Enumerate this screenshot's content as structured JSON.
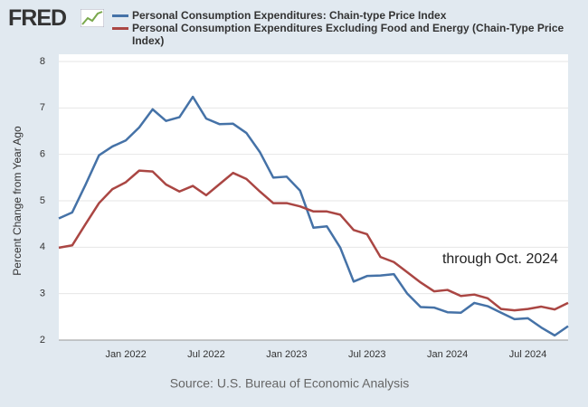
{
  "logo": "FRED",
  "chart_data": {
    "type": "line",
    "source": "Source: U.S. Bureau of Economic Analysis",
    "annotation": "through Oct. 2024",
    "ylabel": "Percent Change from Year Ago",
    "ylim": [
      2,
      8
    ],
    "yticks": [
      2,
      3,
      4,
      5,
      6,
      7,
      8
    ],
    "grid": true,
    "categories": [
      null,
      null,
      null,
      null,
      null,
      "Jan 2022",
      null,
      null,
      null,
      null,
      null,
      "Jul 2022",
      null,
      null,
      null,
      null,
      null,
      "Jan 2023",
      null,
      null,
      null,
      null,
      null,
      "Jul 2023",
      null,
      null,
      null,
      null,
      null,
      "Jan 2024",
      null,
      null,
      null,
      null,
      null,
      "Jul 2024",
      null,
      null,
      null
    ],
    "series": [
      {
        "name": "Personal Consumption Expenditures: Chain-type Price Index",
        "color": "#4572a7",
        "values": [
          4.62,
          4.75,
          5.35,
          5.98,
          6.17,
          6.3,
          6.58,
          6.97,
          6.72,
          6.8,
          7.24,
          6.77,
          6.65,
          6.66,
          6.46,
          6.05,
          5.5,
          5.52,
          5.22,
          4.42,
          4.45,
          3.99,
          3.26,
          3.38,
          3.39,
          3.42,
          3.0,
          2.71,
          2.7,
          2.6,
          2.59,
          2.8,
          2.73,
          2.59,
          2.45,
          2.47,
          2.27,
          2.1,
          2.3
        ]
      },
      {
        "name": "Personal Consumption Expenditures Excluding Food and Energy (Chain-Type Price Index)",
        "color": "#aa4643",
        "values": [
          3.99,
          4.04,
          4.5,
          4.95,
          5.25,
          5.4,
          5.65,
          5.63,
          5.35,
          5.2,
          5.32,
          5.12,
          5.36,
          5.6,
          5.47,
          5.2,
          4.95,
          4.95,
          4.88,
          4.77,
          4.77,
          4.7,
          4.37,
          4.28,
          3.79,
          3.68,
          3.46,
          3.24,
          3.05,
          3.08,
          2.95,
          2.98,
          2.9,
          2.67,
          2.64,
          2.67,
          2.72,
          2.66,
          2.8
        ]
      }
    ]
  }
}
